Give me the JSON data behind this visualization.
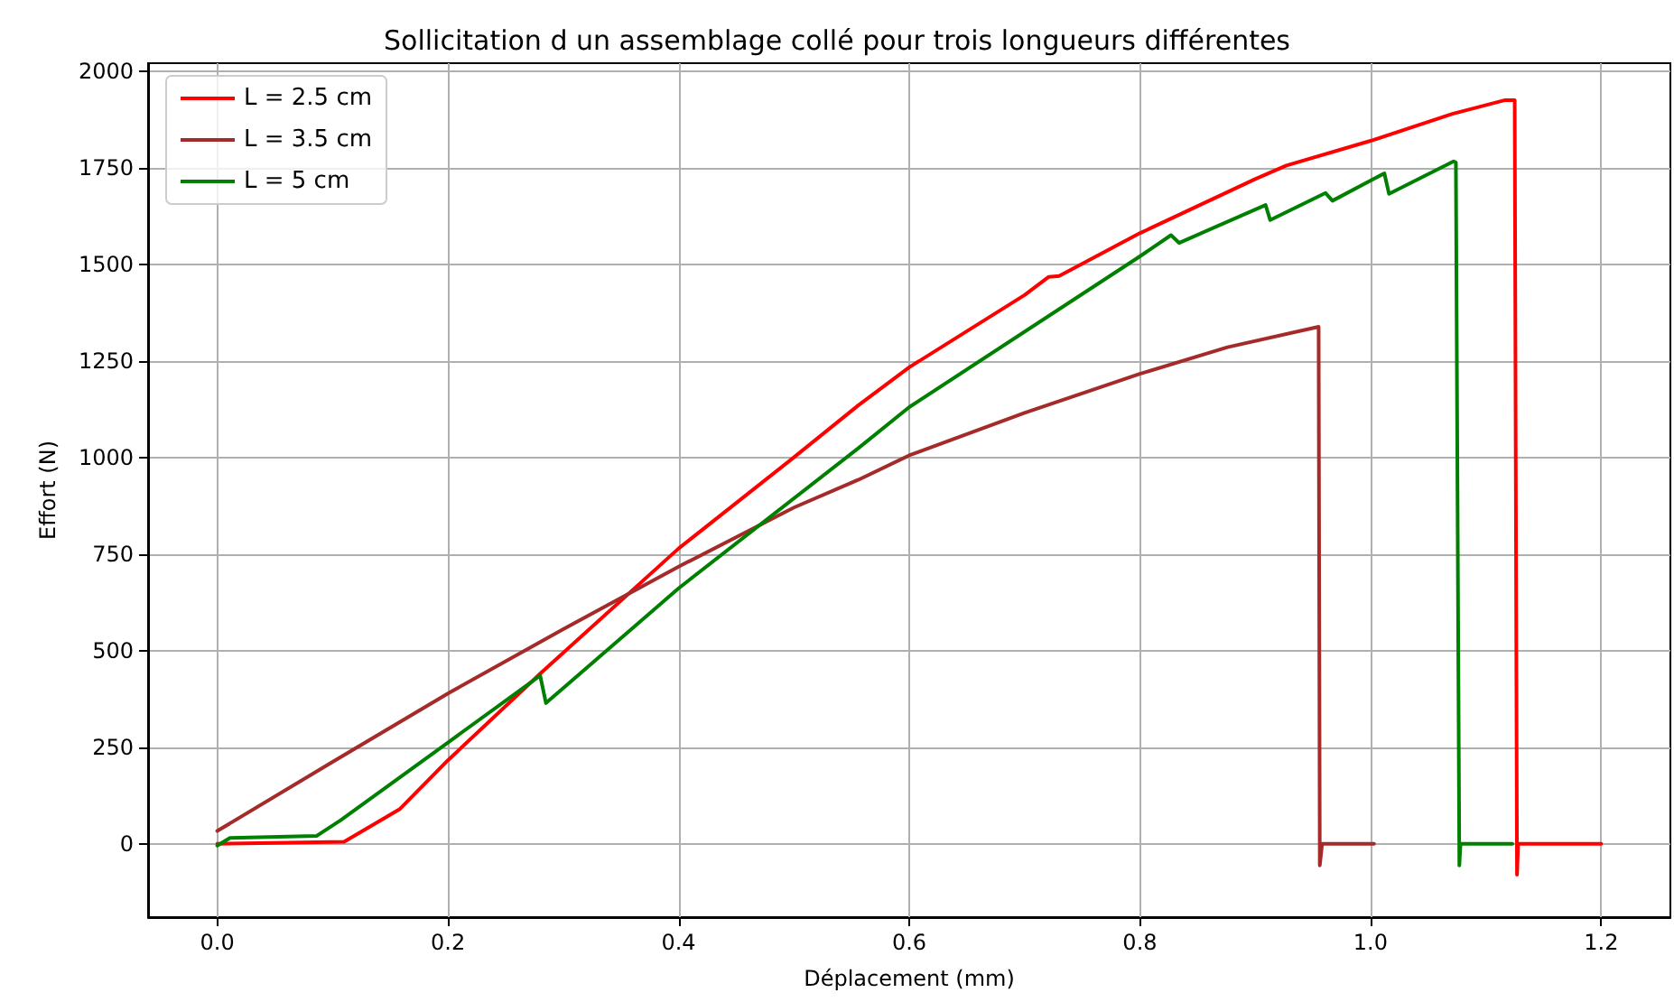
{
  "chart_data": {
    "type": "line",
    "title": "Sollicitation d un assemblage collé pour trois longueurs différentes",
    "xlabel": "Déplacement (mm)",
    "ylabel": "Effort (N)",
    "xlim": [
      -0.06,
      1.26
    ],
    "xticks": [
      {
        "value": 0,
        "label": "0.0"
      },
      {
        "value": 0.2,
        "label": "0.2"
      },
      {
        "value": 0.4,
        "label": "0.4"
      },
      {
        "value": 0.6,
        "label": "0.6"
      },
      {
        "value": 0.8,
        "label": "0.8"
      },
      {
        "value": 1,
        "label": "1.0"
      },
      {
        "value": 1.2,
        "label": "1.2"
      }
    ],
    "ylim": [
      -190,
      2020
    ],
    "yticks": [
      0,
      250,
      500,
      750,
      1000,
      1250,
      1500,
      1750,
      2000
    ],
    "grid": true,
    "legend": "top left",
    "marker": "none",
    "line_style": "solid",
    "series": [
      {
        "name": "L = 2.5 cm",
        "color": "#ff0000",
        "x": [
          0,
          0.05,
          0.11,
          0.158,
          0.2,
          0.28,
          0.4,
          0.5,
          0.556,
          0.6,
          0.7,
          0.721,
          0.73,
          0.8,
          0.9,
          0.927,
          1.0,
          1.071,
          1.116,
          1.125,
          1.127,
          1.128,
          1.2
        ],
        "values": [
          0,
          2,
          5,
          89,
          216,
          440,
          764,
          1000,
          1135,
          1233,
          1420,
          1467,
          1469,
          1580,
          1720,
          1755,
          1819,
          1889,
          1924,
          1924,
          -80,
          0,
          0
        ]
      },
      {
        "name": "L = 3.5 cm",
        "color": "#a52a2a",
        "x": [
          0,
          0.1,
          0.2,
          0.3,
          0.4,
          0.5,
          0.556,
          0.6,
          0.7,
          0.8,
          0.876,
          0.955,
          0.956,
          0.958,
          1.003
        ],
        "values": [
          33,
          212,
          389,
          555,
          717,
          870,
          942,
          1005,
          1115,
          1216,
          1285,
          1338,
          -56,
          0,
          0
        ]
      },
      {
        "name": "L = 5 cm",
        "color": "#008000",
        "x": [
          0,
          0.011,
          0.086,
          0.107,
          0.2,
          0.28,
          0.285,
          0.4,
          0.556,
          0.6,
          0.8,
          0.827,
          0.834,
          0.909,
          0.913,
          0.961,
          0.967,
          1.012,
          1.016,
          1.072,
          1.074,
          1.077,
          1.078,
          1.123
        ],
        "values": [
          -5,
          15,
          20,
          61,
          262,
          435,
          364,
          661,
          1024,
          1130,
          1520,
          1575,
          1555,
          1653,
          1614,
          1684,
          1664,
          1735,
          1682,
          1766,
          1763,
          -56,
          0,
          0
        ]
      }
    ]
  }
}
